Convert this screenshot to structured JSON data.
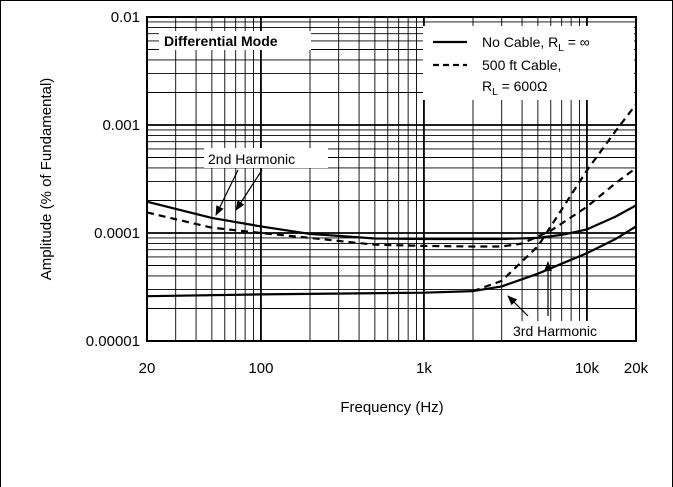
{
  "chart_data": {
    "type": "line",
    "title": "",
    "panel_label": "Differential Mode",
    "xlabel": "Frequency (Hz)",
    "ylabel": "Amplitude (% of Fundamental)",
    "x_scale": "log",
    "y_scale": "log",
    "xlim": [
      20,
      20000
    ],
    "ylim": [
      1e-05,
      0.01
    ],
    "grid": true,
    "legend_position": "top-right",
    "x_ticks": [
      {
        "value": 20,
        "label": "20"
      },
      {
        "value": 100,
        "label": "100"
      },
      {
        "value": 1000,
        "label": "1k"
      },
      {
        "value": 10000,
        "label": "10k"
      },
      {
        "value": 20000,
        "label": "20k"
      }
    ],
    "y_ticks": [
      {
        "value": 1e-05,
        "label": "0.00001"
      },
      {
        "value": 0.0001,
        "label": "0.0001"
      },
      {
        "value": 0.001,
        "label": "0.001"
      },
      {
        "value": 0.01,
        "label": "0.01"
      }
    ],
    "legend": [
      {
        "style": "solid",
        "line1": "No Cable, R",
        "sub": "L",
        "rest": " = ∞"
      },
      {
        "style": "dashed",
        "line1": "500 ft Cable,",
        "line2": "R",
        "sub": "L",
        "rest": " = 600Ω"
      }
    ],
    "annotations": [
      {
        "text": "2nd Harmonic"
      },
      {
        "text": "3rd Harmonic"
      }
    ],
    "series": [
      {
        "style": "solid",
        "harmonic": "2nd",
        "x": [
          20,
          50,
          100,
          200,
          500,
          1000,
          2000,
          3000,
          5000,
          7000,
          10000,
          15000,
          20000
        ],
        "y": [
          0.000195,
          0.000138,
          0.000115,
          9.8e-05,
          8.9e-05,
          8.8e-05,
          8.8e-05,
          8.8e-05,
          9e-05,
          9.6e-05,
          0.000108,
          0.000142,
          0.00018
        ]
      },
      {
        "style": "dashed",
        "harmonic": "2nd",
        "x": [
          20,
          50,
          100,
          200,
          500,
          1000,
          2000,
          3000,
          4000,
          6000,
          10000,
          15000,
          20000
        ],
        "y": [
          0.000155,
          0.000112,
          0.0001,
          9e-05,
          7.8e-05,
          7.6e-05,
          7.5e-05,
          7.5e-05,
          8e-05,
          0.000105,
          0.000175,
          0.00029,
          0.0004
        ]
      },
      {
        "style": "solid",
        "harmonic": "3rd",
        "x": [
          20,
          100,
          1000,
          2000,
          3000,
          5000,
          7000,
          10000,
          15000,
          20000
        ],
        "y": [
          2.6e-05,
          2.7e-05,
          2.8e-05,
          2.9e-05,
          3.2e-05,
          4.2e-05,
          5.2e-05,
          6.5e-05,
          8.8e-05,
          0.000115
        ]
      },
      {
        "style": "dashed",
        "harmonic": "3rd",
        "x": [
          2000,
          3000,
          5000,
          7000,
          10000,
          15000,
          20000
        ],
        "y": [
          2.9e-05,
          3.6e-05,
          7.55e-05,
          0.000165,
          0.00038,
          0.00088,
          0.00155
        ]
      }
    ]
  }
}
